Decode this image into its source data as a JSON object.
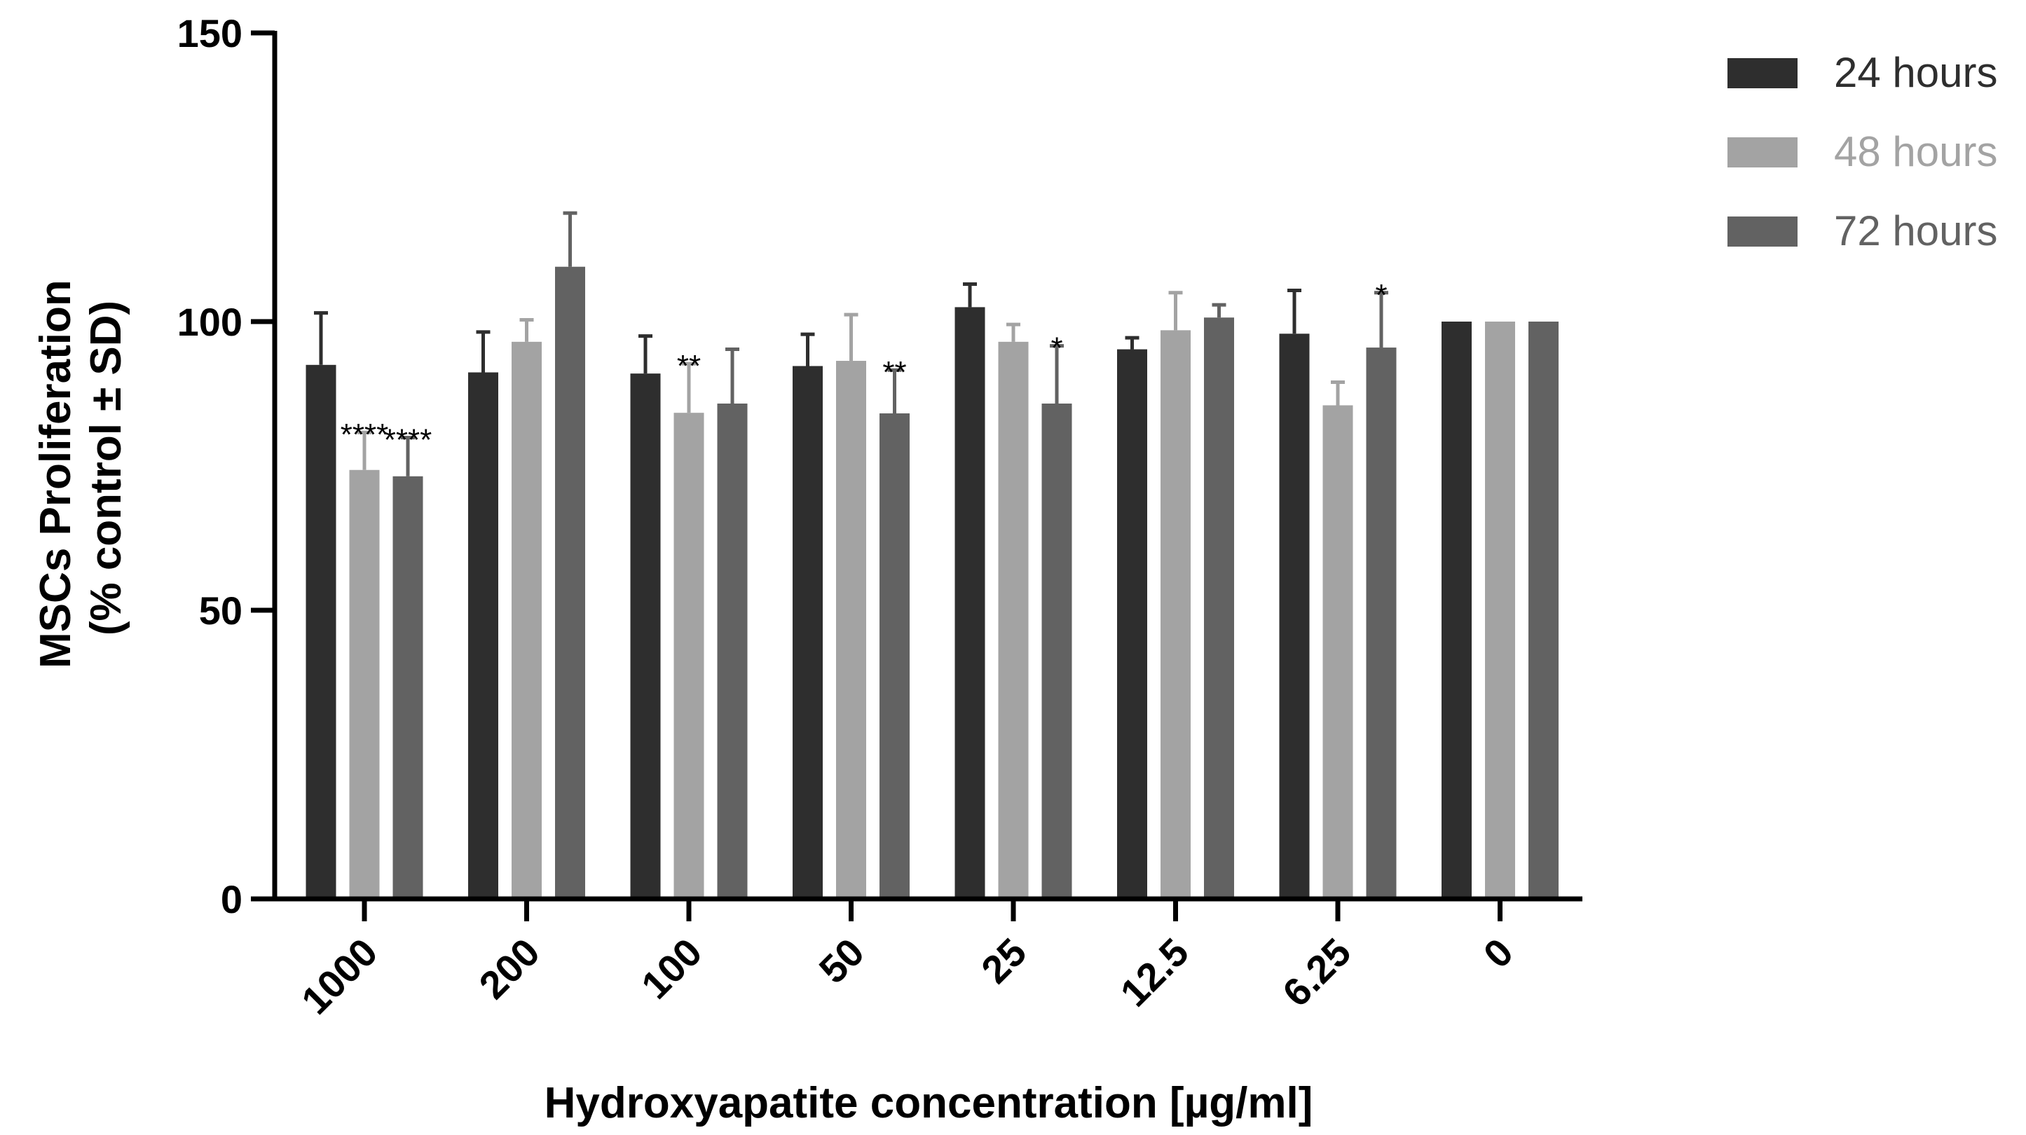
{
  "chart_data": {
    "type": "bar",
    "title": "",
    "xlabel": "Hydroxyapatite concentration [µg/ml]",
    "ylabel_line1": "MSCs Proliferation",
    "ylabel_line2": "(% control ± SD)",
    "ylim": [
      0,
      150
    ],
    "yticks": [
      {
        "value": 0,
        "label": "0"
      },
      {
        "value": 50,
        "label": "50"
      },
      {
        "value": 100,
        "label": "100"
      },
      {
        "value": 150,
        "label": "150"
      }
    ],
    "categories": [
      "1000",
      "200",
      "100",
      "50",
      "25",
      "12.5",
      "6.25",
      "0"
    ],
    "series": [
      {
        "name": "24 hours",
        "color": "#2e2e2e",
        "values": [
          92.5,
          91.2,
          91.0,
          92.3,
          102.5,
          95.2,
          97.9,
          100
        ],
        "errors": [
          9.0,
          7.0,
          6.5,
          5.5,
          4.0,
          2.0,
          7.5,
          0
        ],
        "sig": [
          "",
          "",
          "",
          "",
          "",
          "",
          "",
          ""
        ]
      },
      {
        "name": "48 hours",
        "color": "#a3a3a3",
        "values": [
          74.3,
          96.5,
          84.2,
          93.2,
          96.5,
          98.5,
          85.5,
          100
        ],
        "errors": [
          6.5,
          3.8,
          8.5,
          8.0,
          3.0,
          6.5,
          4.0,
          0
        ],
        "sig": [
          "****",
          "",
          "**",
          "",
          "",
          "",
          "",
          ""
        ]
      },
      {
        "name": "72 hours",
        "color": "#626262",
        "values": [
          73.2,
          109.5,
          85.8,
          84.1,
          85.8,
          100.7,
          95.5,
          100
        ],
        "errors": [
          6.7,
          9.3,
          9.4,
          7.5,
          10.0,
          2.2,
          9.5,
          0
        ],
        "sig": [
          "****",
          "",
          "",
          "**",
          "*",
          "",
          "*",
          ""
        ]
      }
    ],
    "legend_position": "top-right"
  }
}
